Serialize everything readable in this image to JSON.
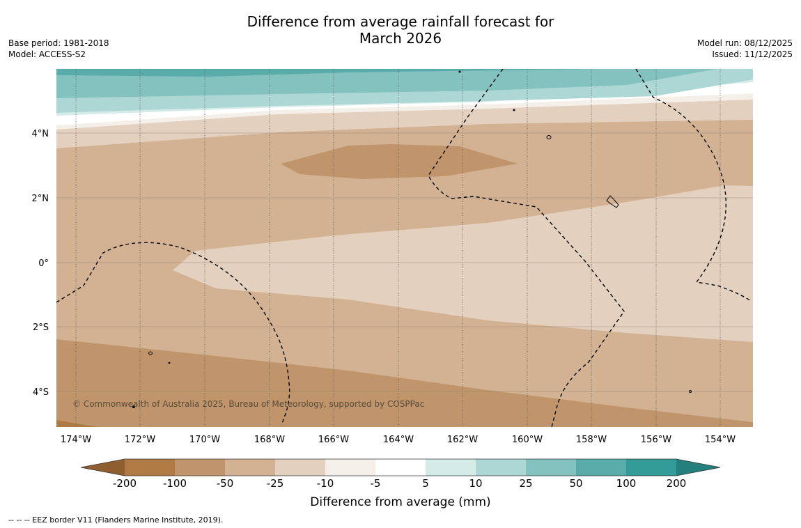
{
  "title_line1": "Difference from average rainfall forecast for",
  "title_line2": "March 2026",
  "base_period": "Base period: 1981-2018",
  "model": "Model: ACCESS-S2",
  "model_run": "Model run: 08/12/2025",
  "issued": "Issued: 11/12/2025",
  "copyright": "© Commonwealth of Australia 2025, Bureau of Meteorology, supported by COSPPac",
  "footnote": "--  --  -- EEZ border V11 (Flanders Marine Institute, 2019).",
  "lat_labels": [
    "4°N",
    "2°N",
    "0°",
    "2°S",
    "4°S"
  ],
  "lon_labels": [
    "174°W",
    "172°W",
    "170°W",
    "168°W",
    "166°W",
    "164°W",
    "162°W",
    "160°W",
    "158°W",
    "156°W",
    "154°W"
  ],
  "colorbar": {
    "title": "Difference from average (mm)",
    "labels": [
      "-200",
      "-100",
      "-50",
      "-25",
      "-10",
      "-5",
      "5",
      "10",
      "25",
      "50",
      "100",
      "200"
    ],
    "colors": [
      "#8f5e30",
      "#b07a44",
      "#c0956b",
      "#d3b293",
      "#e3d0bf",
      "#f5efe9",
      "#ffffff",
      "#d5ebe8",
      "#add7d5",
      "#84c2c0",
      "#5aacaa",
      "#339c98",
      "#23807c"
    ]
  },
  "map_colors": {
    "band_50_to_100": "#5aacaa",
    "band_25_to_50": "#84c2c0",
    "band_10_to_25": "#add7d5",
    "band_5_to_10": "#d5ebe8",
    "band_-5_to_5": "#ffffff",
    "band_-10_to_-5": "#f5efe9",
    "band_-25_to_-10": "#e3d0bf",
    "band_-50_to_-25": "#d3b293",
    "band_-100_to_-50": "#c0956b",
    "band_-200_to_-100": "#b07a44"
  }
}
